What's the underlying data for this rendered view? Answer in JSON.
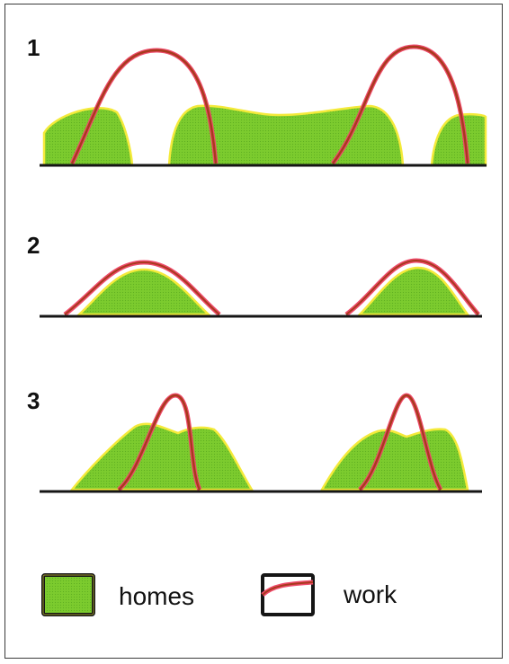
{
  "panels": [
    {
      "number": "1"
    },
    {
      "number": "2"
    },
    {
      "number": "3"
    }
  ],
  "legend": {
    "homes_label": "homes",
    "work_label": "work"
  },
  "colors": {
    "homes_fill": "#7ccb2e",
    "homes_edge": "#f4ea3a",
    "work_line": "#a83a1e",
    "work_edge": "#ee4a6a",
    "baseline": "#151515",
    "frame": "#3a3a3a"
  }
}
